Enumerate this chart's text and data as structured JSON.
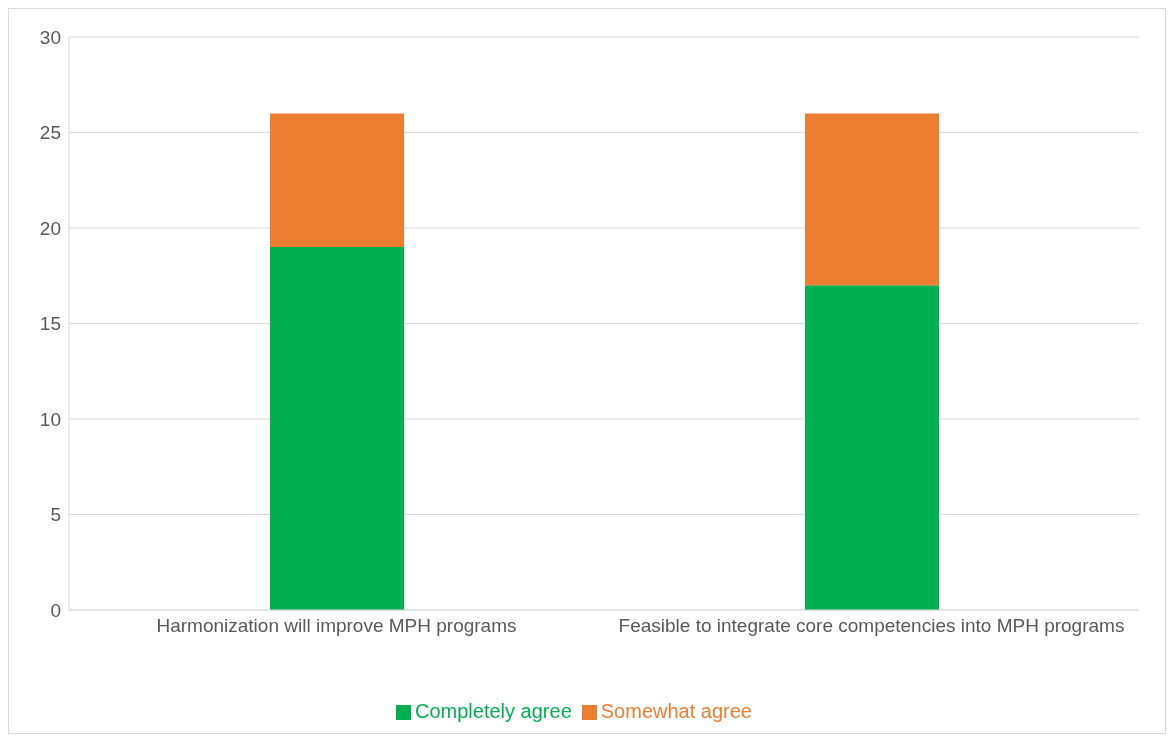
{
  "chart_data": {
    "type": "bar",
    "stacked": true,
    "categories": [
      "Harmonization will improve MPH programs",
      "Feasible to integrate core competencies into MPH programs"
    ],
    "series": [
      {
        "name": "Completely agree",
        "color": "#00b050",
        "values": [
          19,
          17
        ]
      },
      {
        "name": "Somewhat agree",
        "color": "#ed7d31",
        "values": [
          7,
          9
        ]
      }
    ],
    "ylim": [
      0,
      30
    ],
    "yticks": [
      0,
      5,
      10,
      15,
      20,
      25,
      30
    ],
    "grid": "y",
    "legend": "bottom"
  }
}
